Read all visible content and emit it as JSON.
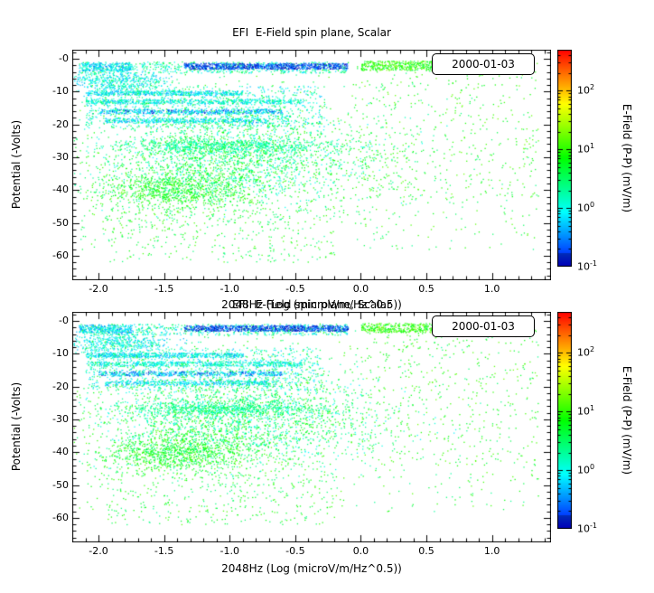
{
  "chart_data": {
    "type": "scatter",
    "title": "EFI  E-Field spin plane, Scalar",
    "xlabel": "2048Hz (Log (microV/m/Hz^0.5))",
    "ylabel": "Potential (-Volts)",
    "xlim": [
      -2.2,
      1.45
    ],
    "ylim": [
      -67.5,
      2.8
    ],
    "xticks": {
      "values": [
        -2.0,
        -1.5,
        -1.0,
        -0.5,
        0.0,
        0.5,
        1.0
      ],
      "labels": [
        "-2.0",
        "-1.5",
        "-1.0",
        "-0.5",
        "0.0",
        "0.5",
        "1.0"
      ]
    },
    "yticks": {
      "values": [
        0,
        -10,
        -20,
        -30,
        -40,
        -50,
        -60
      ],
      "labels": [
        "-0",
        "-10",
        "-20",
        "-30",
        "-40",
        "-50",
        "-60"
      ]
    },
    "colorbar": {
      "label": "E-Field (P-P) (mV/m)",
      "tick_exponents": [
        2,
        1,
        0,
        -1
      ],
      "log_range": [
        -1,
        2.7
      ]
    },
    "clusters": [
      {
        "n": 600,
        "x": [
          -2.15,
          -0.1
        ],
        "y": [
          -4.2,
          -0.8
        ],
        "logv": [
          -0.3,
          0.7
        ]
      },
      {
        "n": 800,
        "x": [
          -1.35,
          -0.1
        ],
        "y": [
          -3.0,
          -1.2
        ],
        "logv": [
          -1.0,
          -0.45
        ]
      },
      {
        "n": 650,
        "x": [
          0.0,
          1.05
        ],
        "y": [
          -3.4,
          -0.5
        ],
        "logv": [
          0.55,
          1.35
        ]
      },
      {
        "n": 250,
        "x": [
          -2.15,
          -1.75
        ],
        "y": [
          -3.5,
          -1.0
        ],
        "logv": [
          -0.6,
          0.2
        ]
      },
      {
        "n": 500,
        "x": {
          "mu": -1.85,
          "sd": 0.2
        },
        "y": {
          "mu": -6.5,
          "sd": 1.6
        },
        "logv": [
          -0.4,
          0.4
        ]
      },
      {
        "n": 500,
        "x": [
          -2.1,
          -0.9
        ],
        "y": [
          -11.0,
          -9.6
        ],
        "logv": [
          -0.55,
          0.35
        ]
      },
      {
        "n": 550,
        "x": [
          -2.1,
          -0.45
        ],
        "y": [
          -13.6,
          -12.2
        ],
        "logv": [
          -0.4,
          0.45
        ]
      },
      {
        "n": 480,
        "x": [
          -2.0,
          -0.6
        ],
        "y": [
          -16.6,
          -15.2
        ],
        "logv": [
          -0.9,
          0.15
        ]
      },
      {
        "n": 380,
        "x": [
          -1.95,
          -0.7
        ],
        "y": [
          -19.4,
          -18.0
        ],
        "logv": [
          -0.55,
          0.3
        ]
      },
      {
        "n": 900,
        "x": [
          -2.1,
          -0.3
        ],
        "y": [
          -21,
          -8
        ],
        "logv": [
          -0.35,
          0.55
        ]
      },
      {
        "n": 2400,
        "x": {
          "mu": -0.95,
          "sd": 0.55
        },
        "y": {
          "mu": -30,
          "sd": 7.5
        },
        "logv": [
          -0.15,
          1.15
        ]
      },
      {
        "n": 650,
        "x": {
          "mu": -1.05,
          "sd": 0.4
        },
        "y": {
          "mu": -26.5,
          "sd": 1.1
        },
        "logv": [
          -0.1,
          0.75
        ]
      },
      {
        "n": 950,
        "x": {
          "mu": -1.4,
          "sd": 0.3
        },
        "y": {
          "mu": -40,
          "sd": 3
        },
        "logv": [
          0.35,
          1.25
        ]
      },
      {
        "n": 800,
        "x": [
          -2.15,
          1.35
        ],
        "y": [
          -58,
          -0.5
        ],
        "logv": [
          0.25,
          1.2
        ]
      },
      {
        "n": 300,
        "x": [
          0.0,
          1.35
        ],
        "y": [
          -44,
          -1
        ],
        "logv": [
          0.55,
          1.3
        ]
      },
      {
        "n": 260,
        "x": [
          -1.95,
          -0.2
        ],
        "y": [
          -62,
          -46
        ],
        "logv": [
          0.3,
          1.15
        ]
      }
    ],
    "panels": [
      {
        "date": "2000-01-03",
        "seed": 7
      },
      {
        "date": "2000-01-03",
        "seed": 1234
      }
    ]
  }
}
